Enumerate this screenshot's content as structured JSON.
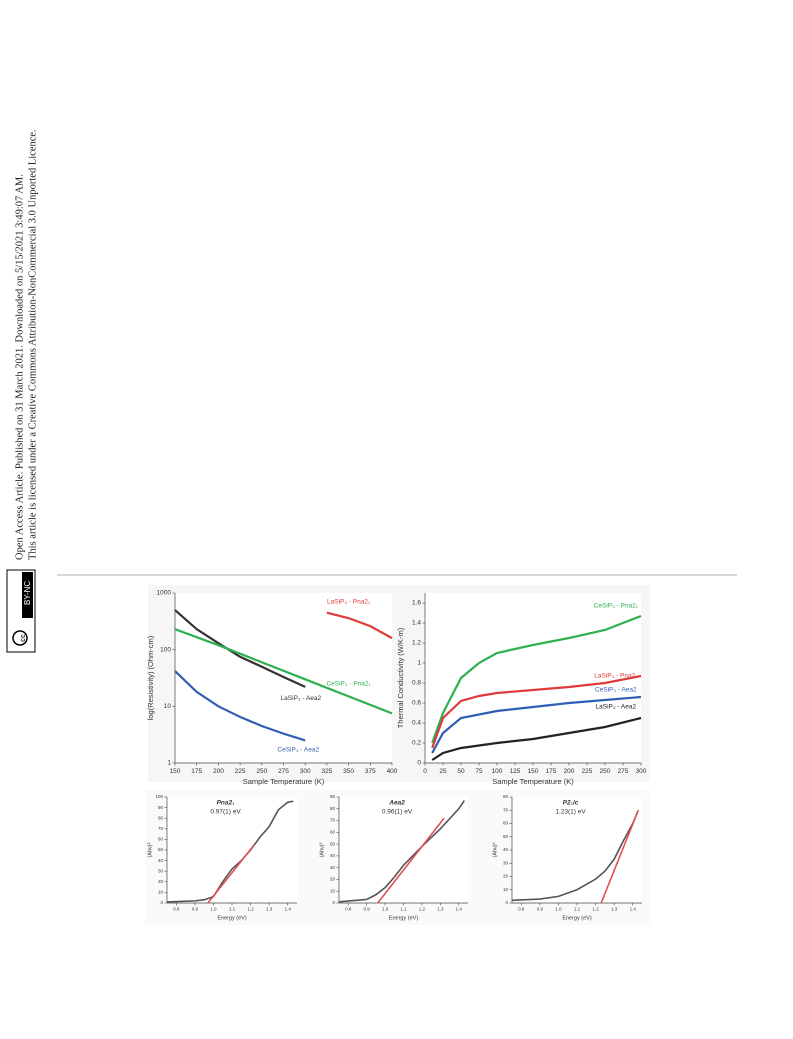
{
  "sidebar": {
    "line1": "Open Access Article. Published on 31 March 2021. Downloaded on 5/15/2021 3:49:07 AM.",
    "line2": "This article is licensed under a Creative Commons Attribution-NonCommercial 3.0 Unported Licence.",
    "badge": "BY-NC",
    "badge_cc": "cc"
  },
  "chart_data": [
    {
      "type": "line",
      "xlabel": "Sample Temperature (K)",
      "ylabel": "log(Resistivity) (Ohm-cm)",
      "log_y": true,
      "xlim": [
        150,
        400
      ],
      "xticks": [
        150,
        175,
        200,
        225,
        250,
        275,
        300,
        325,
        350,
        375,
        400
      ],
      "ylim": [
        1,
        1000
      ],
      "yticks": [
        1,
        10,
        100,
        1000
      ],
      "series": [
        {
          "name": "LaSiP₃ - Pna2₁",
          "color": "#e03a3a",
          "x": [
            325,
            350,
            375,
            400
          ],
          "values": [
            450,
            360,
            260,
            160
          ]
        },
        {
          "name": "LaSiP₃ - Aea2",
          "color": "#333333",
          "x": [
            150,
            175,
            200,
            225,
            250,
            275,
            300
          ],
          "values": [
            500,
            230,
            130,
            75,
            50,
            33,
            22
          ]
        },
        {
          "name": "CeSiP₃ - Pna2₁",
          "color": "#2eb04f",
          "x": [
            150,
            200,
            250,
            300,
            350,
            400
          ],
          "values": [
            230,
            120,
            60,
            30,
            15,
            7.5
          ]
        },
        {
          "name": "CeSiP₃ - Aea2",
          "color": "#2f5fb3",
          "x": [
            150,
            175,
            200,
            225,
            250,
            275,
            300
          ],
          "values": [
            42,
            18,
            10,
            6.5,
            4.5,
            3.3,
            2.5
          ]
        }
      ]
    },
    {
      "type": "line",
      "xlabel": "Sample Temperature (K)",
      "ylabel": "Thermal Conductivity (W/K-m)",
      "xlim": [
        0,
        300
      ],
      "xticks": [
        0,
        25,
        50,
        75,
        100,
        125,
        150,
        175,
        200,
        225,
        250,
        275,
        300
      ],
      "ylim": [
        0,
        1.7
      ],
      "yticks": [
        0,
        0.2,
        0.4,
        0.6,
        0.8,
        1,
        1.2,
        1.4,
        1.6
      ],
      "series": [
        {
          "name": "CeSiP₃ - Pna2₁",
          "color": "#2eb04f",
          "x": [
            10,
            25,
            50,
            75,
            100,
            150,
            200,
            250,
            300
          ],
          "values": [
            0.2,
            0.5,
            0.85,
            1.0,
            1.1,
            1.18,
            1.25,
            1.33,
            1.47
          ]
        },
        {
          "name": "LaSiP₃ - Pna2₁",
          "color": "#e03a3a",
          "x": [
            10,
            25,
            50,
            75,
            100,
            150,
            200,
            250,
            300
          ],
          "values": [
            0.15,
            0.45,
            0.62,
            0.67,
            0.7,
            0.73,
            0.76,
            0.8,
            0.87
          ]
        },
        {
          "name": "CeSiP₃ - Aea2",
          "color": "#2f5fb3",
          "x": [
            10,
            25,
            50,
            100,
            150,
            200,
            250,
            300
          ],
          "values": [
            0.1,
            0.3,
            0.45,
            0.52,
            0.56,
            0.6,
            0.63,
            0.66
          ]
        },
        {
          "name": "LaSiP₃ - Aea2",
          "color": "#222222",
          "x": [
            10,
            25,
            50,
            100,
            150,
            200,
            250,
            300
          ],
          "values": [
            0.03,
            0.1,
            0.15,
            0.2,
            0.24,
            0.3,
            0.36,
            0.45
          ]
        }
      ]
    },
    {
      "type": "line",
      "title": "Pna2₁",
      "annotation": "0.97(1) eV",
      "xlabel": "Energy (eV)",
      "ylabel": "(Ahν)²",
      "xlim": [
        0.75,
        1.45
      ],
      "xticks": [
        0.8,
        0.9,
        {
          "value": 1,
          "label": "1.0"
        },
        1.1,
        1.2,
        1.3,
        1.4
      ],
      "ylim": [
        0,
        100
      ],
      "yticks": [
        0,
        10,
        20,
        30,
        40,
        50,
        60,
        70,
        80,
        90,
        100
      ],
      "series": [
        {
          "color": "#555555",
          "x": [
            0.75,
            0.9,
            0.95,
            1.0,
            1.05,
            1.1,
            1.15,
            1.2,
            1.25,
            1.3,
            1.35,
            1.4,
            1.43
          ],
          "values": [
            1,
            2,
            3,
            6,
            20,
            32,
            40,
            50,
            62,
            72,
            88,
            95,
            96
          ]
        },
        {
          "color": "#e05050",
          "x": [
            0.97,
            1.22
          ],
          "values": [
            0,
            55
          ]
        }
      ]
    },
    {
      "type": "line",
      "title": "Aea2",
      "annotation": "0.96(1) eV",
      "xlabel": "Energy (eV)",
      "ylabel": "(Ahν)²",
      "xlim": [
        0.75,
        1.45
      ],
      "xticks": [
        0.8,
        0.9,
        {
          "value": 1,
          "label": "1.0"
        },
        1.1,
        1.2,
        1.3,
        1.4
      ],
      "ylim": [
        0,
        90
      ],
      "yticks": [
        0,
        10,
        20,
        30,
        40,
        50,
        60,
        70,
        80,
        90
      ],
      "series": [
        {
          "color": "#555555",
          "x": [
            0.75,
            0.9,
            0.95,
            1.0,
            1.05,
            1.1,
            1.2,
            1.3,
            1.4,
            1.43
          ],
          "values": [
            1,
            3,
            7,
            13,
            22,
            32,
            48,
            63,
            80,
            87
          ]
        },
        {
          "color": "#e05050",
          "x": [
            0.96,
            1.32
          ],
          "values": [
            0,
            72
          ]
        }
      ]
    },
    {
      "type": "line",
      "title": "P2₁/c",
      "annotation": "1.23(1) eV",
      "xlabel": "Energy (eV)",
      "ylabel": "(Ahν)²",
      "xlim": [
        0.75,
        1.45
      ],
      "xticks": [
        0.8,
        0.9,
        {
          "value": 1,
          "label": "1.0"
        },
        1.1,
        1.2,
        1.3,
        1.4
      ],
      "ylim": [
        0,
        80
      ],
      "yticks": [
        0,
        10,
        20,
        30,
        40,
        50,
        60,
        70,
        80
      ],
      "series": [
        {
          "color": "#555555",
          "x": [
            0.75,
            0.9,
            1.0,
            1.1,
            1.2,
            1.25,
            1.3,
            1.35,
            1.4,
            1.43
          ],
          "values": [
            2,
            3,
            5,
            10,
            18,
            24,
            33,
            47,
            60,
            70
          ]
        },
        {
          "color": "#e05050",
          "x": [
            1.23,
            1.43
          ],
          "values": [
            0,
            70
          ]
        }
      ]
    }
  ]
}
